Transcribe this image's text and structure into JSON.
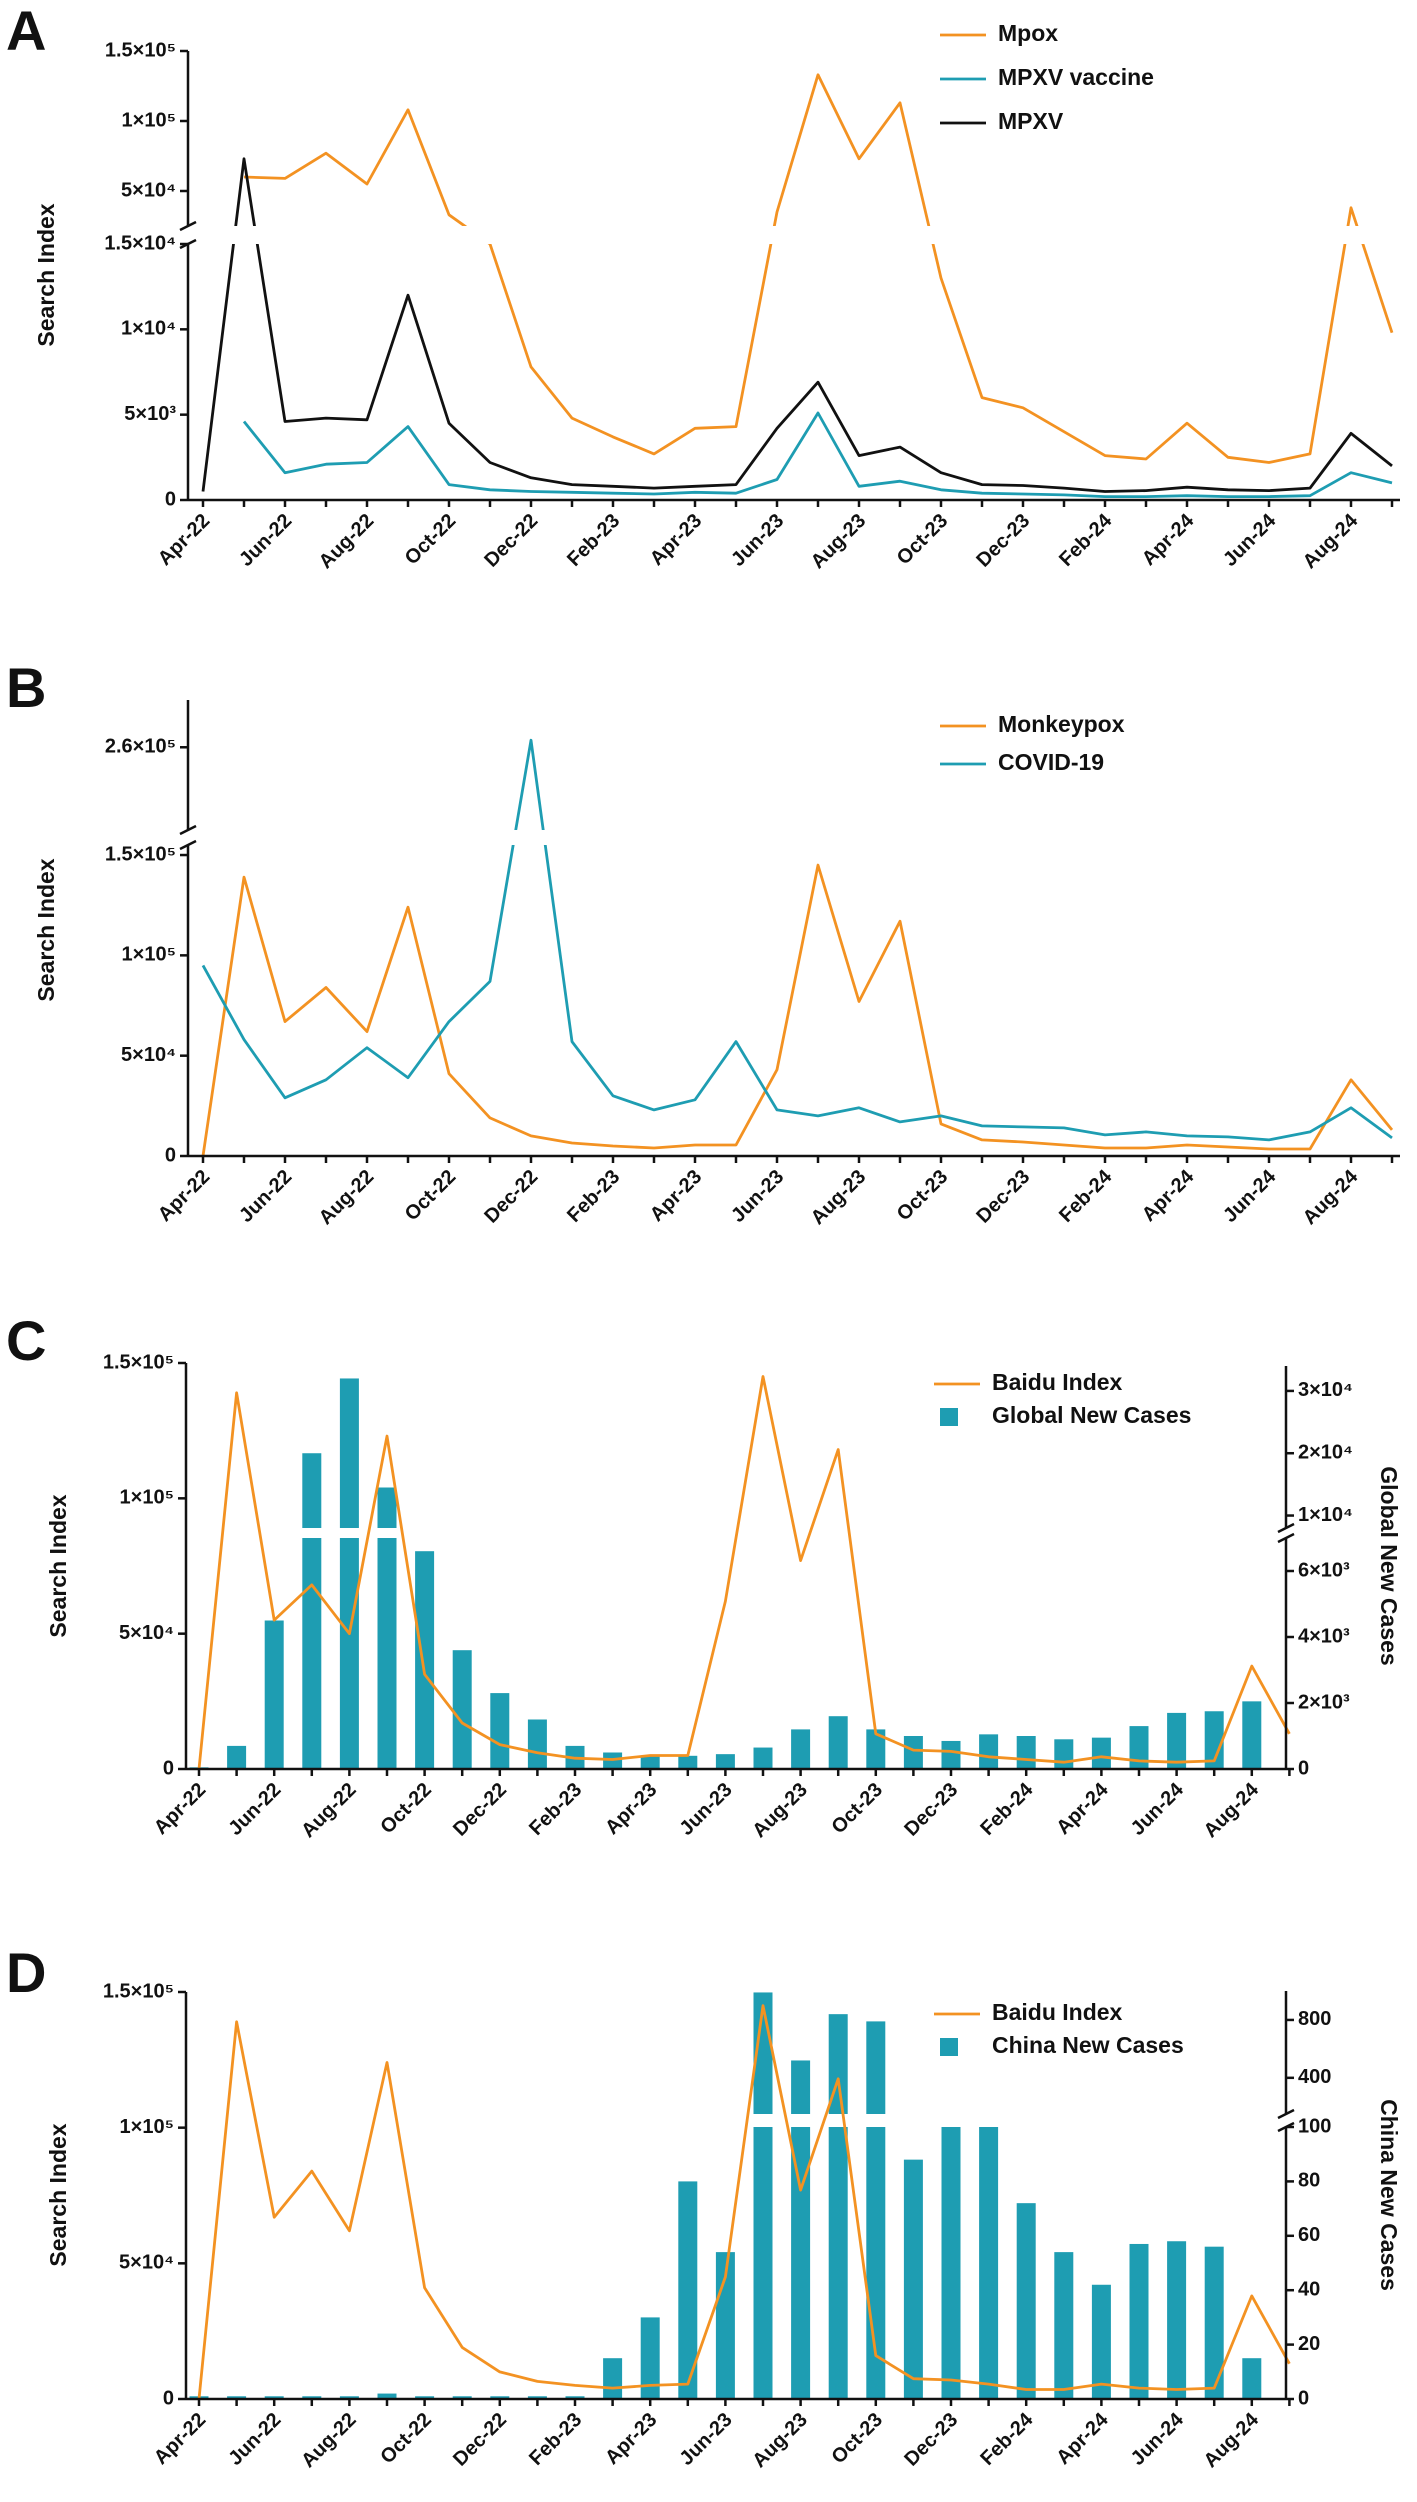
{
  "chart_data": [
    {
      "panel": "A",
      "type": "line",
      "ylabel": "Search Index",
      "categories": [
        "Apr-22",
        null,
        "Jun-22",
        null,
        "Aug-22",
        null,
        "Oct-22",
        null,
        "Dec-22",
        null,
        "Feb-23",
        null,
        "Apr-23",
        null,
        "Jun-23",
        null,
        "Aug-23",
        null,
        "Oct-23",
        null,
        "Dec-23",
        null,
        "Feb-24",
        null,
        "Apr-24",
        null,
        "Jun-24",
        null,
        "Aug-24",
        null
      ],
      "ylim": [
        0,
        150000
      ],
      "ybreak": [
        15000,
        25000
      ],
      "yticks": [
        0,
        {
          "value": 5000,
          "label": "5×10³"
        },
        {
          "value": 10000,
          "label": "1×10⁴"
        },
        {
          "value": 15000,
          "label": "1.5×10⁴"
        },
        {
          "value": 50000,
          "label": "5×10⁴"
        },
        {
          "value": 100000,
          "label": "1×10⁵"
        },
        {
          "value": 150000,
          "label": "1.5×10⁵"
        }
      ],
      "legend": "top-right",
      "series": [
        {
          "name": "Mpox",
          "color": "#f39222",
          "values": [
            null,
            60000,
            59000,
            77000,
            55000,
            108000,
            33000,
            15000,
            7800,
            4800,
            3700,
            2700,
            4200,
            4300,
            35000,
            133000,
            73000,
            113000,
            13000,
            6000,
            5400,
            4000,
            2600,
            2400,
            4500,
            2500,
            2200,
            2700,
            38000,
            9800
          ]
        },
        {
          "name": "MPXV vaccine",
          "color": "#1e9db2",
          "values": [
            null,
            4600,
            1600,
            2100,
            2200,
            4300,
            900,
            600,
            500,
            450,
            400,
            350,
            450,
            400,
            1200,
            5100,
            800,
            1100,
            600,
            400,
            350,
            300,
            200,
            200,
            250,
            200,
            200,
            250,
            1600,
            1000
          ]
        },
        {
          "name": "MPXV",
          "color": "#111111",
          "values": [
            500,
            73000,
            4600,
            4800,
            4700,
            12000,
            4500,
            2200,
            1300,
            900,
            800,
            700,
            800,
            900,
            4200,
            6900,
            2600,
            3100,
            1600,
            900,
            850,
            700,
            500,
            550,
            750,
            600,
            550,
            700,
            3900,
            2000
          ]
        }
      ]
    },
    {
      "panel": "B",
      "type": "line",
      "ylabel": "Search Index",
      "categories": [
        "Apr-22",
        null,
        "Jun-22",
        null,
        "Aug-22",
        null,
        "Oct-22",
        null,
        "Dec-22",
        null,
        "Feb-23",
        null,
        "Apr-23",
        null,
        "Jun-23",
        null,
        "Aug-23",
        null,
        "Oct-23",
        null,
        "Dec-23",
        null,
        "Feb-24",
        null,
        "Apr-24",
        null,
        "Jun-24",
        null,
        "Aug-24",
        null
      ],
      "ylim": [
        0,
        280000
      ],
      "ybreak": [
        155000,
        225000
      ],
      "yticks": [
        0,
        {
          "value": 50000,
          "label": "5×10⁴"
        },
        {
          "value": 100000,
          "label": "1×10⁵"
        },
        {
          "value": 150000,
          "label": "1.5×10⁵"
        },
        {
          "value": 260000,
          "label": "2.6×10⁵"
        }
      ],
      "legend": "top-right",
      "series": [
        {
          "name": "Monkeypox",
          "color": "#f39222",
          "values": [
            0,
            139000,
            67000,
            84000,
            62000,
            124000,
            41000,
            19000,
            10000,
            6500,
            5000,
            4000,
            5500,
            5500,
            43000,
            145000,
            77000,
            117000,
            16000,
            8000,
            7000,
            5500,
            4000,
            4000,
            5500,
            4500,
            3500,
            3500,
            38000,
            13000
          ]
        },
        {
          "name": "COVID-19",
          "color": "#1e9db2",
          "values": [
            95000,
            58000,
            29000,
            38000,
            54000,
            39000,
            67000,
            87000,
            263000,
            57000,
            30000,
            23000,
            28000,
            57000,
            23000,
            20000,
            24000,
            17000,
            20000,
            15000,
            14500,
            14000,
            10500,
            12000,
            10000,
            9500,
            8000,
            12000,
            24000,
            9000
          ]
        }
      ]
    },
    {
      "panel": "C",
      "type": "combo",
      "ylabel": "Search Index",
      "y2label": "Global New Cases",
      "categories": [
        "Apr-22",
        null,
        "Jun-22",
        null,
        "Aug-22",
        null,
        "Oct-22",
        null,
        "Dec-22",
        null,
        "Feb-23",
        null,
        "Apr-23",
        null,
        "Jun-23",
        null,
        "Aug-23",
        null,
        "Oct-23",
        null,
        "Dec-23",
        null,
        "Feb-24",
        null,
        "Apr-24",
        null,
        "Jun-24",
        null,
        "Aug-24",
        null
      ],
      "ylim": [
        0,
        150000
      ],
      "yticks": [
        0,
        {
          "value": 50000,
          "label": "5×10⁴"
        },
        {
          "value": 100000,
          "label": "1×10⁵"
        },
        {
          "value": 150000,
          "label": "1.5×10⁵"
        }
      ],
      "y2lim": [
        0,
        34000
      ],
      "y2break": [
        7000,
        8000
      ],
      "y2ticks": [
        0,
        {
          "value": 2000,
          "label": "2×10³"
        },
        {
          "value": 4000,
          "label": "4×10³"
        },
        {
          "value": 6000,
          "label": "6×10³"
        },
        {
          "value": 10000,
          "label": "1×10⁴"
        },
        {
          "value": 20000,
          "label": "2×10⁴"
        },
        {
          "value": 30000,
          "label": "3×10⁴"
        }
      ],
      "legend": "top-right",
      "series": [
        {
          "name": "Baidu Index",
          "type": "line",
          "color": "#f39222",
          "values": [
            0,
            139000,
            55000,
            68000,
            50000,
            123000,
            35000,
            17000,
            9000,
            6000,
            4000,
            3500,
            5000,
            5000,
            62000,
            145000,
            77000,
            118000,
            13000,
            7000,
            6500,
            4500,
            3500,
            2500,
            4500,
            3000,
            2500,
            3000,
            38000,
            13000
          ]
        },
        {
          "name": "Global New Cases",
          "type": "bar",
          "axis": "y2",
          "color": "#1e9db2",
          "values": [
            50,
            700,
            4500,
            20000,
            32000,
            14500,
            6600,
            3600,
            2300,
            1500,
            700,
            500,
            400,
            400,
            450,
            650,
            1200,
            1600,
            1200,
            1000,
            850,
            1050,
            1000,
            900,
            950,
            1300,
            1700,
            1750,
            2050,
            null
          ]
        }
      ]
    },
    {
      "panel": "D",
      "type": "combo",
      "ylabel": "Search Index",
      "y2label": "China New Cases",
      "categories": [
        "Apr-22",
        null,
        "Jun-22",
        null,
        "Aug-22",
        null,
        "Oct-22",
        null,
        "Dec-22",
        null,
        "Feb-23",
        null,
        "Apr-23",
        null,
        "Jun-23",
        null,
        "Aug-23",
        null,
        "Oct-23",
        null,
        "Dec-23",
        null,
        "Feb-24",
        null,
        "Apr-24",
        null,
        "Jun-24",
        null,
        "Aug-24",
        null
      ],
      "ylim": [
        0,
        150000
      ],
      "yticks": [
        0,
        {
          "value": 50000,
          "label": "5×10⁴"
        },
        {
          "value": 100000,
          "label": "1×10⁵"
        },
        {
          "value": 150000,
          "label": "1.5×10⁵"
        }
      ],
      "y2lim": [
        0,
        1000
      ],
      "y2break": [
        100,
        150
      ],
      "y2ticks": [
        0,
        20,
        40,
        60,
        80,
        100,
        400,
        800
      ],
      "legend": "top-right",
      "series": [
        {
          "name": "Baidu Index",
          "type": "line",
          "color": "#f39222",
          "values": [
            0,
            139000,
            67000,
            84000,
            62000,
            124000,
            41000,
            19000,
            10000,
            6500,
            5000,
            4000,
            5000,
            5500,
            45000,
            145000,
            77000,
            118000,
            16000,
            7500,
            7000,
            5500,
            3500,
            3500,
            5500,
            4000,
            3500,
            4000,
            38000,
            13000
          ]
        },
        {
          "name": "China New Cases",
          "type": "bar",
          "axis": "y2",
          "color": "#1e9db2",
          "values": [
            1,
            1,
            1,
            1,
            1,
            2,
            1,
            1,
            1,
            1,
            1,
            15,
            30,
            80,
            54,
            990,
            520,
            840,
            790,
            88,
            100,
            100,
            72,
            54,
            42,
            57,
            58,
            56,
            15,
            null
          ]
        }
      ]
    }
  ]
}
